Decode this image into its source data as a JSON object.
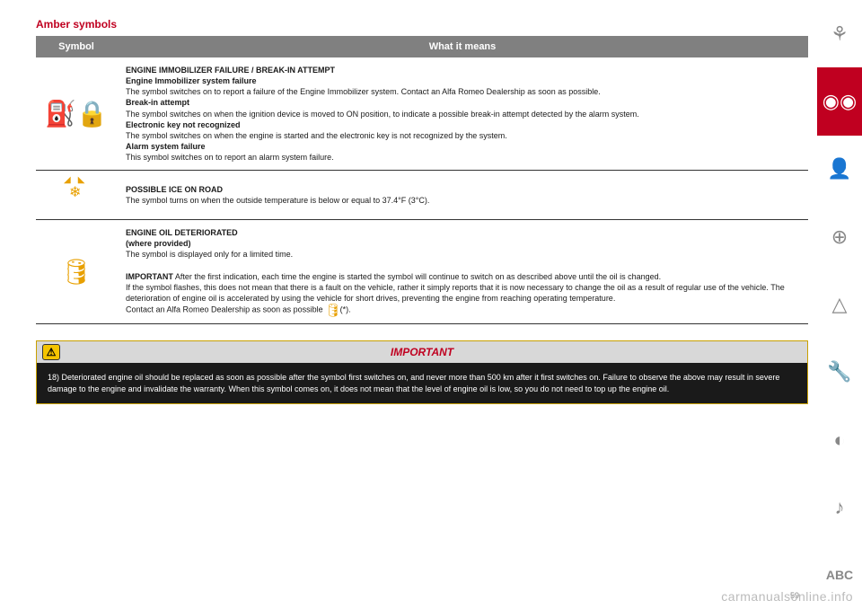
{
  "title": "Amber symbols",
  "table": {
    "headers": {
      "symbol": "Symbol",
      "meaning": "What it means"
    },
    "rows": [
      {
        "icon": "immobilizer-icon",
        "glyph": "⛽🔒",
        "heading": "ENGINE IMMOBILIZER FAILURE / BREAK-IN ATTEMPT",
        "sub1_title": "Engine Immobilizer system failure",
        "sub1_body": "The symbol switches on to report a failure of the Engine Immobilizer system. Contact an Alfa Romeo Dealership as soon as possible.",
        "sub2_title": "Break-in attempt",
        "sub2_body": "The symbol switches on when the ignition device is moved to ON position, to indicate a possible break-in attempt detected by the alarm system.",
        "sub3_title": "Electronic key not recognized",
        "sub3_body": "The symbol switches on when the engine is started and the electronic key is not recognized by the system.",
        "sub4_title": "Alarm system failure",
        "sub4_body": "This symbol switches on to report an alarm system failure."
      },
      {
        "icon": "ice-icon",
        "glyph": "❄",
        "heading": "POSSIBLE ICE ON ROAD",
        "body": "The symbol turns on when the outside temperature is below or equal to 37.4°F (3°C)."
      },
      {
        "icon": "oil-icon",
        "glyph": "🛢",
        "heading": "ENGINE OIL DETERIORATED",
        "sub_note": "(where provided)",
        "body1": "The symbol is displayed only for a limited time.",
        "body2_prefix": "IMPORTANT",
        "body2": " After the first indication, each time the engine is started the symbol will continue to switch on as described above until the oil is changed.",
        "body3": "If the symbol flashes, this does not mean that there is a fault on the vehicle, rather it simply reports that it is now necessary to change the oil as a result of regular use of the vehicle. The deterioration of engine oil is accelerated by using the vehicle for short drives, preventing the engine from reaching operating temperature.",
        "body4_prefix": "Contact an Alfa Romeo Dealership as soon as possible ",
        "inline_icon": "oil-icon",
        "body4_suffix": "  (*)."
      }
    ]
  },
  "important": {
    "label": "IMPORTANT",
    "body": "18) Deteriorated engine oil should be replaced as soon as possible after the symbol first switches on, and never more than 500 km after it first switches on. Failure to observe the above may result in severe damage to the engine and invalidate the warranty. When this symbol comes on, it does not mean that the level of engine oil is low, so you do not need to top up the engine oil."
  },
  "tabs": [
    {
      "name": "tab-car",
      "glyph": "⚘",
      "active": false
    },
    {
      "name": "tab-dash",
      "glyph": "◉◉",
      "active": true
    },
    {
      "name": "tab-seat",
      "glyph": "👤",
      "active": false
    },
    {
      "name": "tab-steering",
      "glyph": "⊕",
      "active": false
    },
    {
      "name": "tab-warning",
      "glyph": "△",
      "active": false
    },
    {
      "name": "tab-service",
      "glyph": "🔧",
      "active": false
    },
    {
      "name": "tab-gauge",
      "glyph": "◐",
      "active": false
    },
    {
      "name": "tab-media",
      "glyph": "♪",
      "active": false
    },
    {
      "name": "tab-index",
      "glyph": "ABC",
      "active": false
    }
  ],
  "page_number": "59",
  "watermark": "carmanualsonline.info",
  "colors": {
    "accent": "#c00020",
    "amber": "#e8a000",
    "header_bg": "#808080",
    "important_border": "#c8a000"
  }
}
